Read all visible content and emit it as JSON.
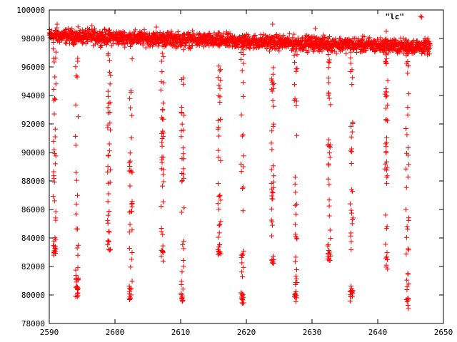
{
  "chart_data": {
    "type": "scatter",
    "title": "",
    "xlabel": "",
    "ylabel": "",
    "xlim": [
      2590,
      2650
    ],
    "ylim": [
      78000,
      100000
    ],
    "grid": false,
    "legend_position": "top-right",
    "marker": "plus",
    "color": "#ff0000",
    "x_ticks": [
      2590,
      2600,
      2610,
      2620,
      2630,
      2640,
      2650
    ],
    "y_ticks": [
      78000,
      80000,
      82000,
      84000,
      86000,
      88000,
      90000,
      92000,
      94000,
      96000,
      98000,
      100000
    ],
    "series": [
      {
        "name": "\"lc\"",
        "baseline": {
          "x_start": 2590,
          "x_end": 2648,
          "y_start": 98200,
          "y_end": 97400,
          "spread": 500
        },
        "outliers_high": [
          [
            2591.2,
            99000
          ],
          [
            2596.5,
            98900
          ],
          [
            2606.3,
            98800
          ],
          [
            2624.0,
            99000
          ],
          [
            2646.7,
            99500
          ],
          [
            2630.5,
            98700
          ],
          [
            2641.3,
            98500
          ]
        ],
        "dips": [
          {
            "x": 2590.8,
            "low": 82600,
            "high": 98000
          },
          {
            "x": 2594.2,
            "low": 79700,
            "high": 98000
          },
          {
            "x": 2599.1,
            "low": 82700,
            "high": 98000
          },
          {
            "x": 2602.4,
            "low": 79600,
            "high": 98000
          },
          {
            "x": 2607.2,
            "low": 82300,
            "high": 98000
          },
          {
            "x": 2610.3,
            "low": 79500,
            "high": 98000
          },
          {
            "x": 2615.9,
            "low": 82700,
            "high": 98000
          },
          {
            "x": 2619.4,
            "low": 79400,
            "high": 98000
          },
          {
            "x": 2624.0,
            "low": 82200,
            "high": 98000
          },
          {
            "x": 2627.5,
            "low": 79400,
            "high": 98000
          },
          {
            "x": 2632.6,
            "low": 82300,
            "high": 97800
          },
          {
            "x": 2636.0,
            "low": 79500,
            "high": 97800
          },
          {
            "x": 2641.3,
            "low": 81800,
            "high": 97800
          },
          {
            "x": 2644.5,
            "low": 79000,
            "high": 97600
          }
        ]
      }
    ]
  }
}
